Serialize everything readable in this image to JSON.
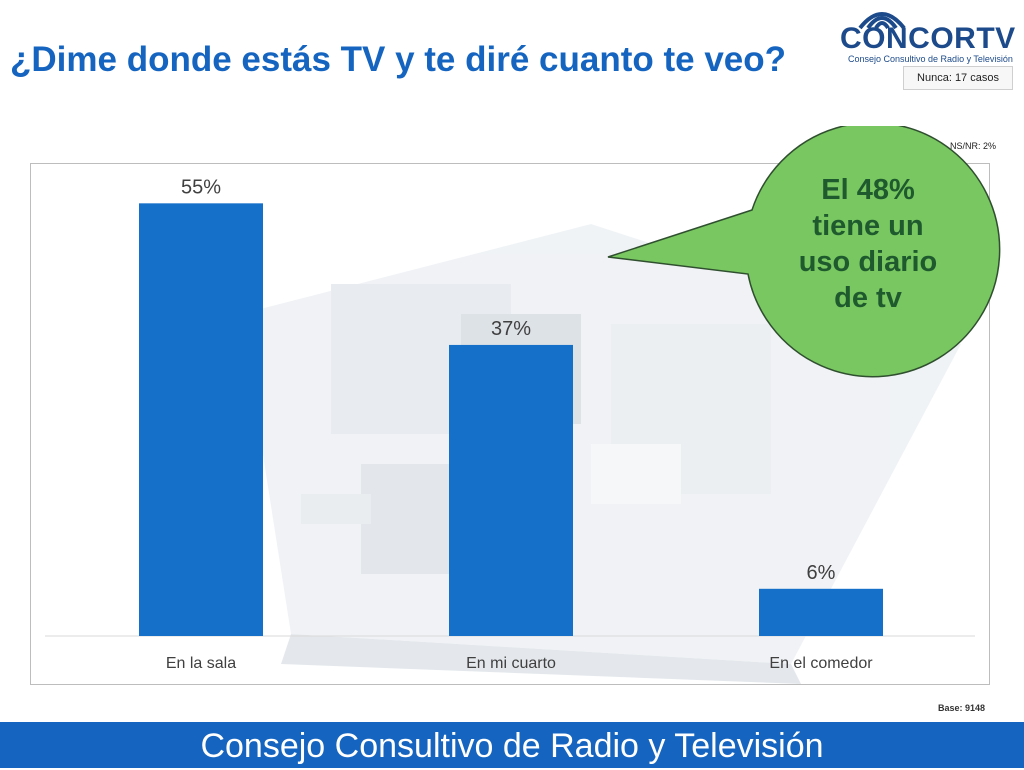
{
  "title": "¿Dime donde estás TV y te diré cuanto te veo?",
  "logo": {
    "name": "CONCORTV",
    "subtitle": "Consejo Consultivo de Radio y Televisión"
  },
  "notes": {
    "nunca": "Nunca: 17 casos",
    "nsnr": "NS/NR: 2%",
    "base": "Base: 9148"
  },
  "callout": "El 48%\ntiene un\nuso diario\nde tv",
  "footer": "Consejo Consultivo de Radio y Televisión",
  "colors": {
    "bar": "#1570c9",
    "callout": "#78c760",
    "title": "#1565c0",
    "footer": "#1565c0"
  },
  "chart_data": {
    "type": "bar",
    "categories": [
      "En la sala",
      "En mi cuarto",
      "En el comedor"
    ],
    "values": [
      55,
      37,
      6
    ],
    "data_labels": [
      "55%",
      "37%",
      "6%"
    ],
    "title": "",
    "xlabel": "",
    "ylabel": "",
    "ylim": [
      0,
      60
    ],
    "grid": false,
    "legend": "none"
  }
}
